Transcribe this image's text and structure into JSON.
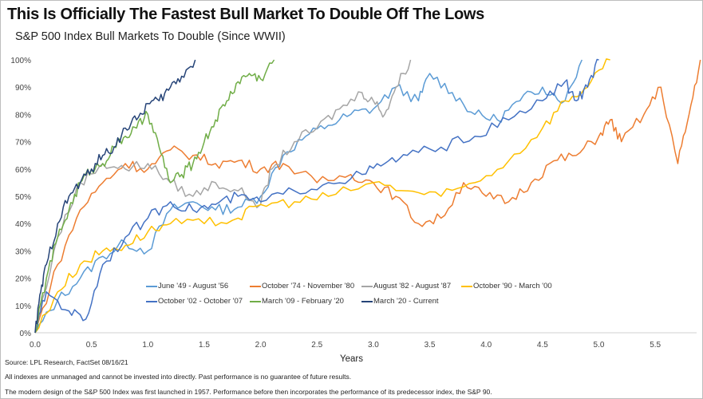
{
  "chart_data": {
    "type": "line",
    "title": "This Is Officially The Fastest Bull Market To Double Off The Lows",
    "subtitle": "S&P 500 Index Bull Markets To Double (Since WWII)",
    "xlabel": "Years",
    "ylabel": "",
    "xlim": [
      0,
      5.9
    ],
    "ylim": [
      0,
      100
    ],
    "x_ticks": [
      "0.0",
      "0.5",
      "1.0",
      "1.5",
      "2.0",
      "2.5",
      "3.0",
      "3.5",
      "4.0",
      "4.5",
      "5.0",
      "5.5"
    ],
    "y_ticks": [
      "0%",
      "10%",
      "20%",
      "30%",
      "40%",
      "50%",
      "60%",
      "70%",
      "80%",
      "90%",
      "100%"
    ],
    "grid": false,
    "legend_position": "bottom-center",
    "series": [
      {
        "name": "June '49 - August '56",
        "color": "#5b9bd5",
        "points": [
          [
            0,
            0
          ],
          [
            0.2,
            12
          ],
          [
            0.4,
            20
          ],
          [
            0.6,
            28
          ],
          [
            0.8,
            33
          ],
          [
            1.0,
            30
          ],
          [
            1.2,
            45
          ],
          [
            1.4,
            48
          ],
          [
            1.6,
            45
          ],
          [
            1.8,
            46
          ],
          [
            2.0,
            50
          ],
          [
            2.2,
            65
          ],
          [
            2.4,
            72
          ],
          [
            2.6,
            76
          ],
          [
            2.8,
            80
          ],
          [
            3.0,
            82
          ],
          [
            3.2,
            90
          ],
          [
            3.4,
            85
          ],
          [
            3.5,
            95
          ],
          [
            3.7,
            88
          ],
          [
            3.9,
            80
          ],
          [
            4.1,
            78
          ],
          [
            4.3,
            85
          ],
          [
            4.5,
            90
          ],
          [
            4.7,
            85
          ],
          [
            4.85,
            100
          ]
        ]
      },
      {
        "name": "October '74 - November '80",
        "color": "#ed7d31",
        "points": [
          [
            0,
            0
          ],
          [
            0.2,
            25
          ],
          [
            0.4,
            45
          ],
          [
            0.6,
            55
          ],
          [
            0.8,
            62
          ],
          [
            1.0,
            60
          ],
          [
            1.2,
            67
          ],
          [
            1.4,
            65
          ],
          [
            1.6,
            62
          ],
          [
            1.8,
            63
          ],
          [
            2.0,
            60
          ],
          [
            2.2,
            62
          ],
          [
            2.5,
            55
          ],
          [
            2.8,
            58
          ],
          [
            3.0,
            55
          ],
          [
            3.2,
            50
          ],
          [
            3.4,
            40
          ],
          [
            3.6,
            42
          ],
          [
            3.8,
            55
          ],
          [
            4.0,
            50
          ],
          [
            4.2,
            48
          ],
          [
            4.4,
            55
          ],
          [
            4.6,
            63
          ],
          [
            4.8,
            65
          ],
          [
            5.0,
            72
          ],
          [
            5.1,
            78
          ],
          [
            5.2,
            70
          ],
          [
            5.4,
            80
          ],
          [
            5.55,
            90
          ],
          [
            5.7,
            62
          ],
          [
            5.8,
            80
          ],
          [
            5.9,
            100
          ]
        ]
      },
      {
        "name": "August '82 - August '87",
        "color": "#a5a5a5",
        "points": [
          [
            0,
            0
          ],
          [
            0.2,
            35
          ],
          [
            0.4,
            55
          ],
          [
            0.6,
            62
          ],
          [
            0.8,
            60
          ],
          [
            1.0,
            62
          ],
          [
            1.2,
            55
          ],
          [
            1.4,
            50
          ],
          [
            1.6,
            55
          ],
          [
            1.8,
            52
          ],
          [
            2.0,
            47
          ],
          [
            2.1,
            60
          ],
          [
            2.3,
            70
          ],
          [
            2.5,
            75
          ],
          [
            2.7,
            82
          ],
          [
            2.9,
            88
          ],
          [
            3.0,
            85
          ],
          [
            3.1,
            80
          ],
          [
            3.2,
            90
          ],
          [
            3.33,
            100
          ]
        ]
      },
      {
        "name": "October '90 - March '00",
        "color": "#ffc000",
        "points": [
          [
            0,
            0
          ],
          [
            0.2,
            15
          ],
          [
            0.4,
            25
          ],
          [
            0.6,
            30
          ],
          [
            0.8,
            32
          ],
          [
            1.0,
            37
          ],
          [
            1.2,
            40
          ],
          [
            1.5,
            40
          ],
          [
            1.8,
            42
          ],
          [
            2.0,
            47
          ],
          [
            2.3,
            48
          ],
          [
            2.6,
            50
          ],
          [
            3.0,
            55
          ],
          [
            3.3,
            52
          ],
          [
            3.6,
            50
          ],
          [
            3.9,
            55
          ],
          [
            4.2,
            63
          ],
          [
            4.5,
            75
          ],
          [
            4.7,
            85
          ],
          [
            4.9,
            90
          ],
          [
            5.1,
            100
          ]
        ]
      },
      {
        "name": "October '02 - October '07",
        "color": "#4472c4",
        "points": [
          [
            0,
            0
          ],
          [
            0.1,
            15
          ],
          [
            0.3,
            8
          ],
          [
            0.45,
            5
          ],
          [
            0.6,
            25
          ],
          [
            0.8,
            35
          ],
          [
            1.0,
            42
          ],
          [
            1.2,
            48
          ],
          [
            1.4,
            45
          ],
          [
            1.6,
            47
          ],
          [
            1.8,
            50
          ],
          [
            2.0,
            48
          ],
          [
            2.3,
            52
          ],
          [
            2.6,
            55
          ],
          [
            2.9,
            58
          ],
          [
            3.1,
            62
          ],
          [
            3.3,
            65
          ],
          [
            3.6,
            68
          ],
          [
            3.9,
            72
          ],
          [
            4.2,
            78
          ],
          [
            4.5,
            85
          ],
          [
            4.7,
            92
          ],
          [
            4.8,
            85
          ],
          [
            4.9,
            90
          ],
          [
            5.0,
            100
          ]
        ]
      },
      {
        "name": "March '09 - February '20",
        "color": "#70ad47",
        "points": [
          [
            0,
            0
          ],
          [
            0.1,
            20
          ],
          [
            0.2,
            35
          ],
          [
            0.3,
            45
          ],
          [
            0.4,
            55
          ],
          [
            0.5,
            60
          ],
          [
            0.6,
            62
          ],
          [
            0.7,
            68
          ],
          [
            0.8,
            72
          ],
          [
            0.9,
            75
          ],
          [
            1.0,
            80
          ],
          [
            1.1,
            68
          ],
          [
            1.2,
            55
          ],
          [
            1.3,
            58
          ],
          [
            1.4,
            62
          ],
          [
            1.5,
            70
          ],
          [
            1.6,
            78
          ],
          [
            1.7,
            85
          ],
          [
            1.8,
            92
          ],
          [
            1.9,
            95
          ],
          [
            2.0,
            93
          ],
          [
            2.12,
            100
          ]
        ]
      },
      {
        "name": "March '20 - Current",
        "color": "#264478",
        "points": [
          [
            0,
            0
          ],
          [
            0.05,
            15
          ],
          [
            0.1,
            25
          ],
          [
            0.2,
            40
          ],
          [
            0.3,
            50
          ],
          [
            0.4,
            55
          ],
          [
            0.5,
            60
          ],
          [
            0.6,
            65
          ],
          [
            0.7,
            68
          ],
          [
            0.8,
            75
          ],
          [
            0.9,
            78
          ],
          [
            1.0,
            84
          ],
          [
            1.1,
            85
          ],
          [
            1.2,
            90
          ],
          [
            1.3,
            94
          ],
          [
            1.42,
            100
          ]
        ]
      }
    ]
  },
  "footer": {
    "source": "Source: LPL Research, FactSet 08/16/21",
    "disclaimer1": "All indexes are unmanaged and cannot be invested into directly. Past performance is no guarantee of future results.",
    "disclaimer2": "The modern design of the S&P 500 Index was first launched in 1957. Performance before then incorporates the performance of its predecessor index, the S&P 90."
  }
}
